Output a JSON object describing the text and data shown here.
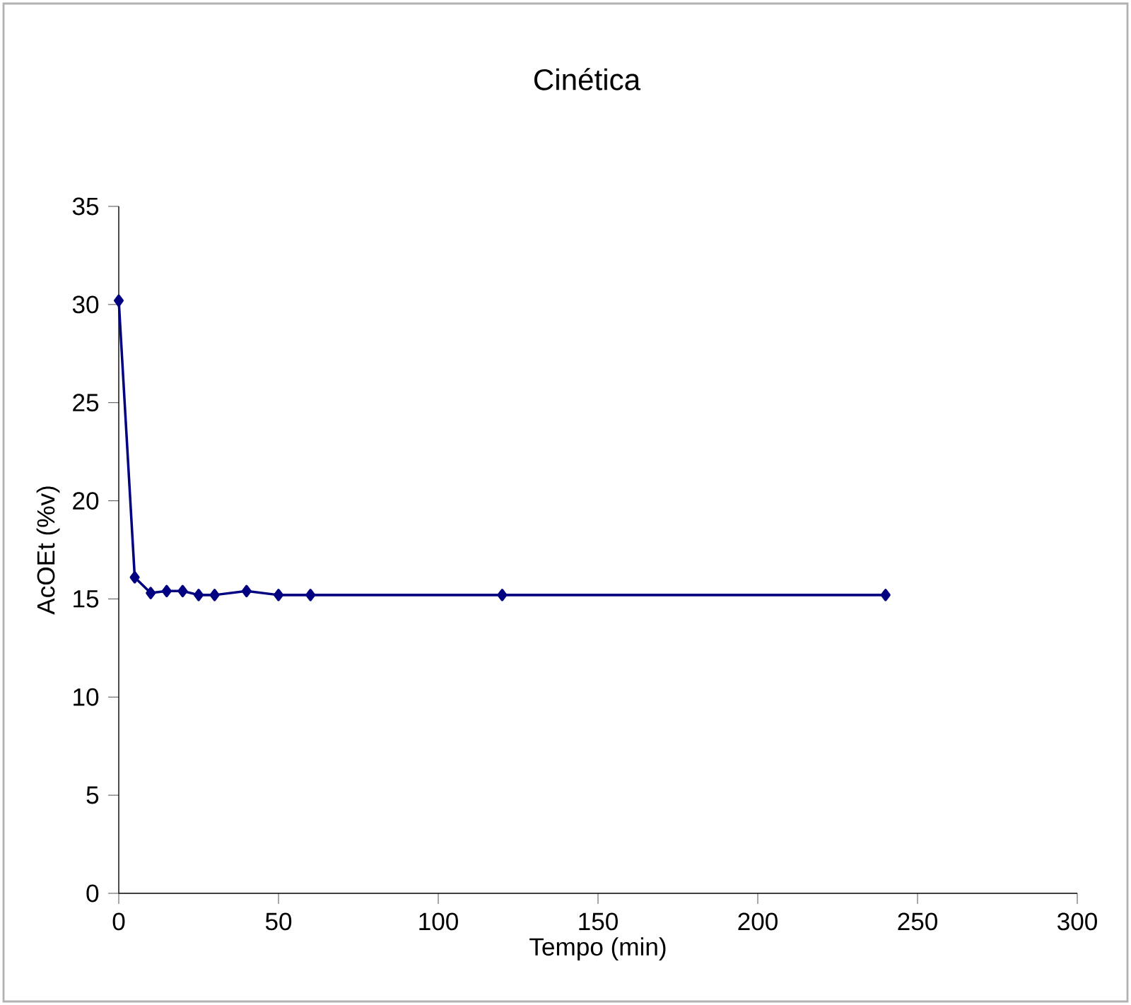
{
  "chart_data": {
    "type": "line",
    "title": "Cinética",
    "xlabel": "Tempo (min)",
    "ylabel": "AcOEt (%v)",
    "x": [
      0,
      5,
      10,
      15,
      20,
      25,
      30,
      40,
      50,
      60,
      120,
      240
    ],
    "series": [
      {
        "color": "#000080",
        "values": [
          30.2,
          16.1,
          15.3,
          15.4,
          15.4,
          15.2,
          15.2,
          15.4,
          15.2,
          15.2,
          15.2,
          15.2
        ]
      }
    ],
    "xlim": [
      0,
      300
    ],
    "xticks": [
      0,
      50,
      100,
      150,
      200,
      250,
      300
    ],
    "ylim": [
      0,
      35
    ],
    "yticks": [
      0,
      5,
      10,
      15,
      20,
      25,
      30,
      35
    ],
    "marker": "diamond",
    "line_style": "solid"
  }
}
